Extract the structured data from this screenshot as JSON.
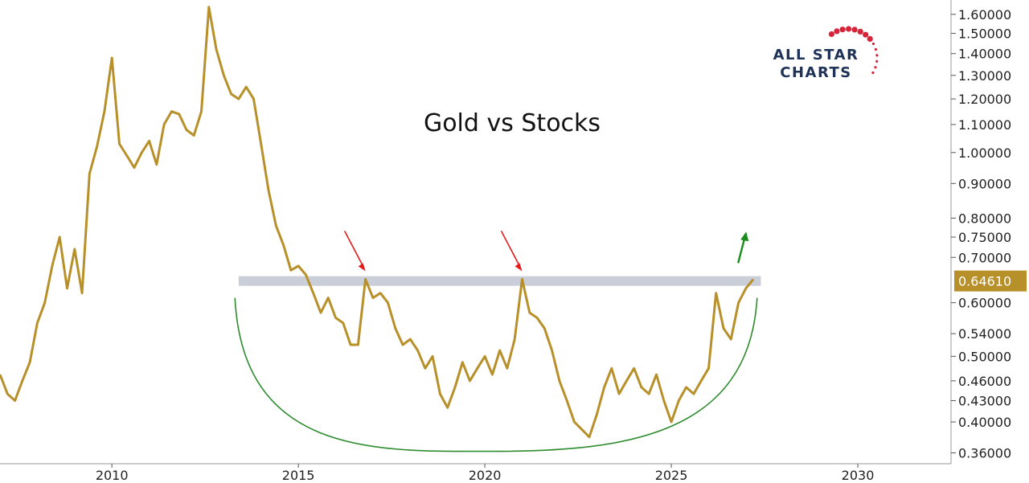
{
  "chart_data": {
    "type": "line",
    "title": "Gold vs Stocks",
    "x_axis": {
      "range": [
        2007,
        2032.5
      ],
      "ticks": [
        2010,
        2015,
        2020,
        2025,
        2030
      ],
      "tick_labels": [
        "2010",
        "2015",
        "2020",
        "2025",
        "2030"
      ]
    },
    "y_axis": {
      "scale": "log",
      "position": "right",
      "range": [
        0.347,
        1.68
      ],
      "ticks": [
        0.36,
        0.4,
        0.43,
        0.46,
        0.5,
        0.54,
        0.6,
        0.7,
        0.75,
        0.8,
        0.9,
        1.0,
        1.1,
        1.2,
        1.3,
        1.4,
        1.5,
        1.6
      ],
      "tick_labels": [
        "0.36000",
        "0.40000",
        "0.43000",
        "0.46000",
        "0.50000",
        "0.54000",
        "0.60000",
        "0.70000",
        "0.75000",
        "0.80000",
        "0.90000",
        "1.00000",
        "1.10000",
        "1.20000",
        "1.30000",
        "1.40000",
        "1.50000",
        "1.60000"
      ]
    },
    "series": [
      {
        "color": "#b8902a",
        "points": [
          [
            2007.0,
            0.47
          ],
          [
            2007.2,
            0.44
          ],
          [
            2007.4,
            0.43
          ],
          [
            2007.6,
            0.46
          ],
          [
            2007.8,
            0.49
          ],
          [
            2008.0,
            0.56
          ],
          [
            2008.2,
            0.6
          ],
          [
            2008.4,
            0.68
          ],
          [
            2008.6,
            0.75
          ],
          [
            2008.8,
            0.63
          ],
          [
            2009.0,
            0.72
          ],
          [
            2009.2,
            0.62
          ],
          [
            2009.4,
            0.93
          ],
          [
            2009.6,
            1.02
          ],
          [
            2009.8,
            1.15
          ],
          [
            2010.0,
            1.38
          ],
          [
            2010.2,
            1.03
          ],
          [
            2010.4,
            0.99
          ],
          [
            2010.6,
            0.95
          ],
          [
            2010.8,
            1.0
          ],
          [
            2011.0,
            1.04
          ],
          [
            2011.2,
            0.96
          ],
          [
            2011.4,
            1.1
          ],
          [
            2011.6,
            1.15
          ],
          [
            2011.8,
            1.14
          ],
          [
            2012.0,
            1.08
          ],
          [
            2012.2,
            1.06
          ],
          [
            2012.4,
            1.15
          ],
          [
            2012.6,
            1.64
          ],
          [
            2012.8,
            1.42
          ],
          [
            2013.0,
            1.3
          ],
          [
            2013.2,
            1.22
          ],
          [
            2013.4,
            1.2
          ],
          [
            2013.6,
            1.25
          ],
          [
            2013.8,
            1.2
          ],
          [
            2014.0,
            1.03
          ],
          [
            2014.2,
            0.88
          ],
          [
            2014.4,
            0.78
          ],
          [
            2014.6,
            0.73
          ],
          [
            2014.8,
            0.67
          ],
          [
            2015.0,
            0.68
          ],
          [
            2015.2,
            0.66
          ],
          [
            2015.4,
            0.62
          ],
          [
            2015.6,
            0.58
          ],
          [
            2015.8,
            0.61
          ],
          [
            2016.0,
            0.57
          ],
          [
            2016.2,
            0.56
          ],
          [
            2016.4,
            0.52
          ],
          [
            2016.6,
            0.52
          ],
          [
            2016.8,
            0.65
          ],
          [
            2017.0,
            0.61
          ],
          [
            2017.2,
            0.62
          ],
          [
            2017.4,
            0.6
          ],
          [
            2017.6,
            0.55
          ],
          [
            2017.8,
            0.52
          ],
          [
            2018.0,
            0.53
          ],
          [
            2018.2,
            0.51
          ],
          [
            2018.4,
            0.48
          ],
          [
            2018.6,
            0.5
          ],
          [
            2018.8,
            0.44
          ],
          [
            2019.0,
            0.42
          ],
          [
            2019.2,
            0.45
          ],
          [
            2019.4,
            0.49
          ],
          [
            2019.6,
            0.46
          ],
          [
            2019.8,
            0.48
          ],
          [
            2020.0,
            0.5
          ],
          [
            2020.2,
            0.47
          ],
          [
            2020.4,
            0.51
          ],
          [
            2020.6,
            0.48
          ],
          [
            2020.8,
            0.53
          ],
          [
            2021.0,
            0.65
          ],
          [
            2021.2,
            0.58
          ],
          [
            2021.4,
            0.57
          ],
          [
            2021.6,
            0.55
          ],
          [
            2021.8,
            0.51
          ],
          [
            2022.0,
            0.46
          ],
          [
            2022.2,
            0.43
          ],
          [
            2022.4,
            0.4
          ],
          [
            2022.6,
            0.39
          ],
          [
            2022.8,
            0.38
          ],
          [
            2023.0,
            0.41
          ],
          [
            2023.2,
            0.45
          ],
          [
            2023.4,
            0.48
          ],
          [
            2023.6,
            0.44
          ],
          [
            2023.8,
            0.46
          ],
          [
            2024.0,
            0.48
          ],
          [
            2024.2,
            0.45
          ],
          [
            2024.4,
            0.44
          ],
          [
            2024.6,
            0.47
          ],
          [
            2024.8,
            0.43
          ],
          [
            2025.0,
            0.4
          ],
          [
            2025.2,
            0.43
          ],
          [
            2025.4,
            0.45
          ],
          [
            2025.6,
            0.44
          ],
          [
            2025.8,
            0.46
          ],
          [
            2026.0,
            0.48
          ],
          [
            2026.2,
            0.62
          ],
          [
            2026.4,
            0.55
          ],
          [
            2026.6,
            0.53
          ],
          [
            2026.8,
            0.6
          ],
          [
            2027.0,
            0.63
          ],
          [
            2027.2,
            0.65
          ]
        ]
      }
    ],
    "last_value_label": "0.64610",
    "annotations": {
      "resistance_level": 0.646,
      "resistance_x_range": [
        2013.4,
        2027.4
      ],
      "base_arc": {
        "x_range": [
          2013.3,
          2027.3
        ],
        "low_x": 2020.3,
        "low_y": 0.362,
        "end_y": 0.61
      },
      "red_arrows_at": [
        [
          2016.8,
          0.65
        ],
        [
          2021.0,
          0.65
        ]
      ],
      "green_arrow_at": [
        2026.9,
        0.7
      ]
    }
  },
  "logo": {
    "line1": "ALL STAR",
    "line2": "CHARTS"
  },
  "colors": {
    "series": "#b8902a",
    "resistance": "#c9ced9",
    "arc": "#2e8b2e",
    "red_arrow": "#e41a1a",
    "green_arrow": "#1a8c1a",
    "logo_text": "#1f3358",
    "logo_stars": "#d6243a"
  }
}
